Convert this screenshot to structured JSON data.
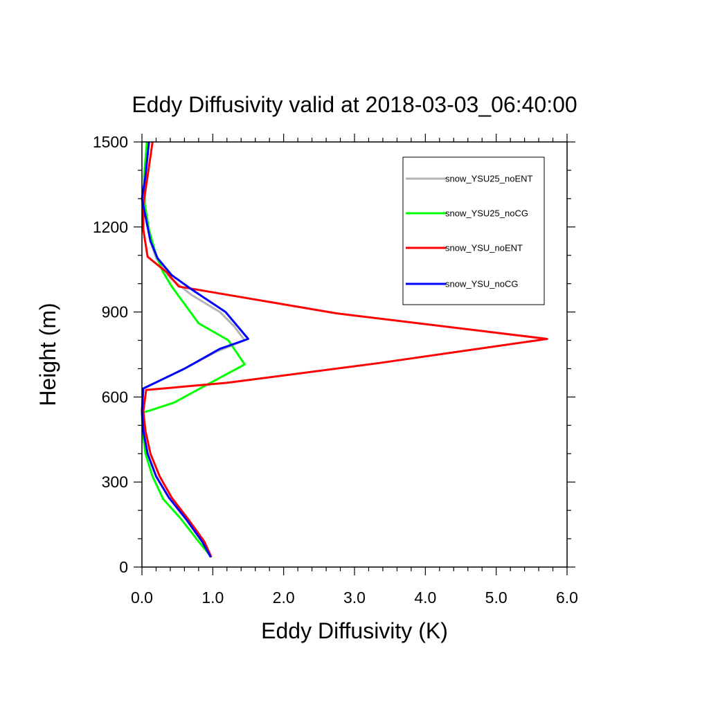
{
  "chart_data": {
    "type": "line",
    "title": "Eddy Diffusivity valid at 2018-03-03_06:40:00",
    "xlabel": "Eddy Diffusivity (K)",
    "ylabel": "Height (m)",
    "xlim": [
      0,
      6
    ],
    "ylim": [
      0,
      1500
    ],
    "x_ticks": [
      0,
      1,
      2,
      3,
      4,
      5,
      6
    ],
    "x_tick_labels": [
      "0.0",
      "1.0",
      "2.0",
      "3.0",
      "4.0",
      "5.0",
      "6.0"
    ],
    "y_ticks": [
      0,
      300,
      600,
      900,
      1200,
      1500
    ],
    "y_tick_labels": [
      "0",
      "300",
      "600",
      "900",
      "1200",
      "1500"
    ],
    "grid": false,
    "legend_position": "top-right",
    "series": [
      {
        "name": "snow_YSU25_noENT",
        "color": "#b3b3b3",
        "points": [
          [
            0.97,
            35
          ],
          [
            0.85,
            90
          ],
          [
            0.62,
            170
          ],
          [
            0.38,
            245
          ],
          [
            0.2,
            320
          ],
          [
            0.08,
            400
          ],
          [
            0.02,
            480
          ],
          [
            0.0,
            550
          ],
          [
            0.02,
            630
          ],
          [
            0.6,
            700
          ],
          [
            1.05,
            760
          ],
          [
            1.45,
            800
          ],
          [
            1.3,
            850
          ],
          [
            1.1,
            900
          ],
          [
            0.7,
            960
          ],
          [
            0.4,
            1020
          ],
          [
            0.2,
            1090
          ],
          [
            0.12,
            1150
          ],
          [
            0.08,
            1200
          ],
          [
            0.04,
            1280
          ],
          [
            0.05,
            1380
          ],
          [
            0.1,
            1500
          ]
        ]
      },
      {
        "name": "snow_YSU25_noCG",
        "color": "#00ff00",
        "points": [
          [
            0.98,
            35
          ],
          [
            0.8,
            90
          ],
          [
            0.55,
            170
          ],
          [
            0.3,
            240
          ],
          [
            0.15,
            320
          ],
          [
            0.05,
            400
          ],
          [
            0.01,
            480
          ],
          [
            0.0,
            545
          ],
          [
            0.08,
            550
          ],
          [
            0.45,
            580
          ],
          [
            0.82,
            630
          ],
          [
            1.45,
            715
          ],
          [
            1.22,
            800
          ],
          [
            0.8,
            860
          ],
          [
            0.42,
            990
          ],
          [
            0.3,
            1040
          ],
          [
            0.2,
            1100
          ],
          [
            0.1,
            1190
          ],
          [
            0.04,
            1280
          ],
          [
            0.03,
            1380
          ],
          [
            0.07,
            1500
          ]
        ]
      },
      {
        "name": "snow_YSU_noENT",
        "color": "#ff0000",
        "points": [
          [
            0.98,
            35
          ],
          [
            0.88,
            90
          ],
          [
            0.65,
            170
          ],
          [
            0.42,
            245
          ],
          [
            0.25,
            320
          ],
          [
            0.12,
            400
          ],
          [
            0.05,
            480
          ],
          [
            0.02,
            550
          ],
          [
            0.06,
            625
          ],
          [
            1.2,
            650
          ],
          [
            3.35,
            720
          ],
          [
            5.72,
            805
          ],
          [
            2.75,
            895
          ],
          [
            0.52,
            990
          ],
          [
            0.35,
            1040
          ],
          [
            0.08,
            1095
          ],
          [
            0.02,
            1190
          ],
          [
            0.02,
            1280
          ],
          [
            0.08,
            1380
          ],
          [
            0.15,
            1500
          ]
        ]
      },
      {
        "name": "snow_YSU_noCG",
        "color": "#0000ff",
        "points": [
          [
            0.97,
            35
          ],
          [
            0.85,
            90
          ],
          [
            0.62,
            170
          ],
          [
            0.38,
            245
          ],
          [
            0.2,
            320
          ],
          [
            0.08,
            400
          ],
          [
            0.02,
            480
          ],
          [
            0.0,
            550
          ],
          [
            0.02,
            630
          ],
          [
            0.6,
            700
          ],
          [
            1.1,
            770
          ],
          [
            1.5,
            805
          ],
          [
            1.18,
            900
          ],
          [
            0.7,
            980
          ],
          [
            0.42,
            1030
          ],
          [
            0.22,
            1090
          ],
          [
            0.12,
            1150
          ],
          [
            0.08,
            1200
          ],
          [
            0.0,
            1300
          ],
          [
            0.05,
            1380
          ],
          [
            0.1,
            1500
          ]
        ]
      }
    ]
  }
}
